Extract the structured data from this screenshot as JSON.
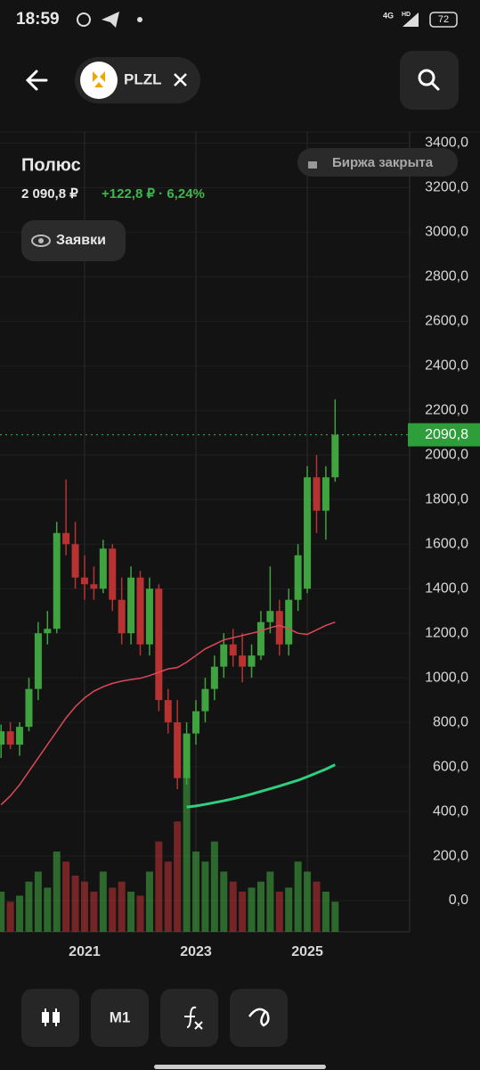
{
  "status_bar": {
    "time": "18:59",
    "network": "4G",
    "hd": "HD",
    "battery": "72"
  },
  "header": {
    "ticker": "PLZL"
  },
  "instrument": {
    "name": "Полюс",
    "price": "2 090,8 ₽",
    "change": "+122,8 ₽ · 6,24%",
    "market_status": "Биржа закрыта",
    "orders_button": "Заявки"
  },
  "chart_data": {
    "type": "candlestick",
    "categories": [
      null,
      null,
      null,
      null,
      null,
      null,
      null,
      null,
      null,
      "2021",
      null,
      null,
      null,
      null,
      null,
      null,
      null,
      null,
      null,
      null,
      null,
      "2023",
      null,
      null,
      null,
      null,
      null,
      null,
      null,
      null,
      null,
      null,
      null,
      "2025",
      null,
      null,
      null
    ],
    "open": [
      700,
      760,
      700,
      780,
      950,
      1200,
      1220,
      1650,
      1600,
      1450,
      1420,
      1400,
      1580,
      1350,
      1200,
      1450,
      1150,
      1400,
      900,
      800,
      550,
      750,
      850,
      950,
      1050,
      1150,
      1100,
      1050,
      1100,
      1250,
      1300,
      1150,
      1350,
      1400,
      1900,
      1750,
      1900
    ],
    "high": [
      790,
      800,
      800,
      1000,
      1250,
      1300,
      1700,
      1890,
      1700,
      1550,
      1500,
      1620,
      1600,
      1450,
      1500,
      1480,
      1450,
      1420,
      950,
      900,
      800,
      900,
      1000,
      1100,
      1200,
      1220,
      1200,
      1150,
      1300,
      1500,
      1350,
      1400,
      1600,
      1950,
      2000,
      1950,
      2250
    ],
    "low": [
      640,
      680,
      650,
      760,
      900,
      1150,
      1200,
      1550,
      1400,
      1350,
      1350,
      1380,
      1300,
      1150,
      1150,
      1100,
      1100,
      850,
      750,
      500,
      520,
      700,
      800,
      900,
      1000,
      1050,
      980,
      1000,
      1080,
      1200,
      1100,
      1100,
      1300,
      1380,
      1650,
      1620,
      1880
    ],
    "close": [
      760,
      700,
      780,
      950,
      1200,
      1220,
      1650,
      1600,
      1450,
      1420,
      1400,
      1580,
      1350,
      1200,
      1450,
      1150,
      1400,
      900,
      800,
      550,
      750,
      850,
      950,
      1050,
      1150,
      1100,
      1050,
      1100,
      1250,
      1300,
      1150,
      1350,
      1550,
      1900,
      1750,
      1900,
      2090.8
    ],
    "volumes": [
      20,
      15,
      18,
      25,
      30,
      22,
      40,
      35,
      28,
      25,
      20,
      30,
      22,
      25,
      20,
      18,
      30,
      45,
      35,
      55,
      80,
      40,
      35,
      45,
      30,
      25,
      20,
      22,
      25,
      30,
      20,
      22,
      35,
      30,
      25,
      20,
      15
    ],
    "up_color": "#3fa33f",
    "down_color": "#b83232",
    "lines": [
      {
        "color": "#e0485a",
        "values": [
          430,
          470,
          520,
          580,
          640,
          700,
          760,
          820,
          870,
          910,
          940,
          960,
          975,
          985,
          992,
          998,
          1010,
          1025,
          1040,
          1046,
          1070,
          1100,
          1130,
          1150,
          1170,
          1180,
          1190,
          1200,
          1210,
          1225,
          1235,
          1220,
          1200,
          1195,
          1215,
          1235,
          1250
        ]
      },
      {
        "color": "#2ecf7f",
        "values": [
          null,
          null,
          null,
          null,
          null,
          null,
          null,
          null,
          null,
          null,
          null,
          null,
          null,
          null,
          null,
          null,
          null,
          null,
          null,
          null,
          420,
          425,
          432,
          440,
          448,
          457,
          467,
          478,
          490,
          502,
          514,
          527,
          540,
          556,
          573,
          590,
          610
        ]
      }
    ],
    "last_price": {
      "value": 2090.8,
      "label": "2090,8"
    },
    "ylim": [
      -140,
      3450
    ],
    "yticks": [
      {
        "value": 0,
        "label": "0,0"
      },
      {
        "value": 200,
        "label": "200,0"
      },
      {
        "value": 400,
        "label": "400,0"
      },
      {
        "value": 600,
        "label": "600,0"
      },
      {
        "value": 800,
        "label": "800,0"
      },
      {
        "value": 1000,
        "label": "1000,0"
      },
      {
        "value": 1200,
        "label": "1200,0"
      },
      {
        "value": 1400,
        "label": "1400,0"
      },
      {
        "value": 1600,
        "label": "1600,0"
      },
      {
        "value": 1800,
        "label": "1800,0"
      },
      {
        "value": 2000,
        "label": "2000,0"
      },
      {
        "value": 2200,
        "label": "2200,0"
      },
      {
        "value": 2400,
        "label": "2400,0"
      },
      {
        "value": 2600,
        "label": "2600,0"
      },
      {
        "value": 2800,
        "label": "2800,0"
      },
      {
        "value": 3000,
        "label": "3000,0"
      },
      {
        "value": 3200,
        "label": "3200,0"
      },
      {
        "value": 3400,
        "label": "3400,0"
      }
    ],
    "grid": true
  },
  "toolbar": {
    "interval": "M1"
  }
}
